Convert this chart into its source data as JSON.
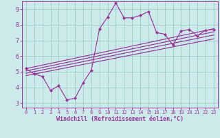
{
  "bg_color": "#cceaea",
  "line_color": "#993399",
  "grid_color": "#99cccc",
  "xlabel": "Windchill (Refroidissement éolien,°C)",
  "xlabel_color": "#993399",
  "tick_color": "#993399",
  "ylim": [
    2.7,
    9.5
  ],
  "xlim": [
    -0.5,
    23.5
  ],
  "yticks": [
    3,
    4,
    5,
    6,
    7,
    8,
    9
  ],
  "xticks": [
    0,
    1,
    2,
    3,
    4,
    5,
    6,
    7,
    8,
    9,
    10,
    11,
    12,
    13,
    14,
    15,
    16,
    17,
    18,
    19,
    20,
    21,
    22,
    23
  ],
  "data_x": [
    0,
    1,
    2,
    3,
    4,
    5,
    6,
    7,
    8,
    9,
    10,
    11,
    12,
    13,
    14,
    15,
    16,
    17,
    18,
    19,
    20,
    21,
    22,
    23
  ],
  "data_y": [
    5.2,
    4.85,
    4.7,
    3.8,
    4.1,
    3.2,
    3.3,
    4.3,
    5.1,
    7.75,
    8.5,
    9.4,
    8.45,
    8.45,
    8.6,
    8.85,
    7.5,
    7.4,
    6.7,
    7.6,
    7.7,
    7.3,
    7.65,
    7.7
  ],
  "ref_lines": [
    [
      [
        0,
        5.2
      ],
      [
        23,
        7.75
      ]
    ],
    [
      [
        0,
        5.05
      ],
      [
        23,
        7.55
      ]
    ],
    [
      [
        0,
        4.9
      ],
      [
        23,
        7.35
      ]
    ],
    [
      [
        0,
        4.75
      ],
      [
        23,
        7.1
      ]
    ]
  ]
}
